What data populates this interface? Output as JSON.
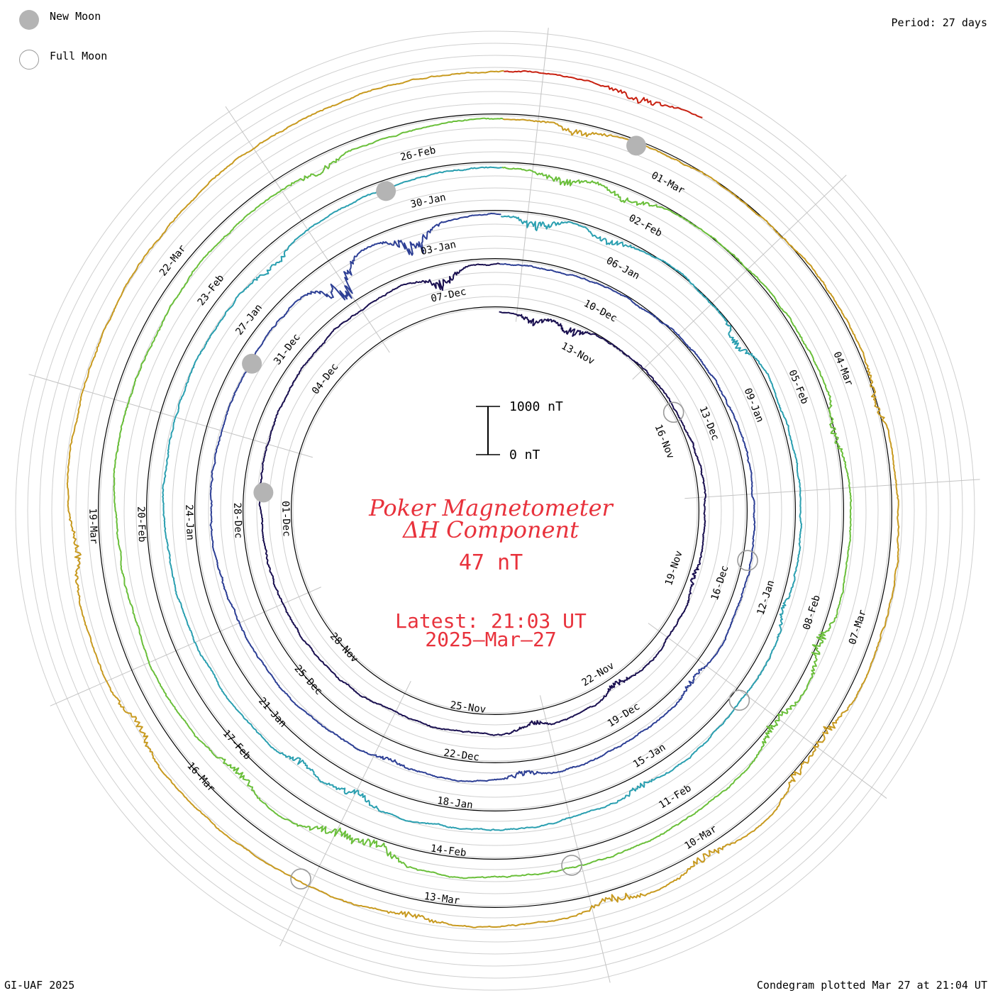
{
  "legend": {
    "new_moon_label": "New Moon",
    "full_moon_label": "Full Moon",
    "new_moon_color": "#b4b4b4",
    "full_moon_color": "#9a9a9a",
    "new_moon_icon": "filled-grey-circle-icon",
    "full_moon_icon": "hollow-grey-circle-icon"
  },
  "period_label": "Period: 27 days",
  "credit": "GI-UAF 2025",
  "plotted_label": "Condegram plotted Mar 27 at 21:04 UT",
  "center": {
    "title_line1": "Poker Magnetometer",
    "title_line2": "ΔH Component",
    "value": "47 nT",
    "latest_line1": "Latest: 21:03 UT",
    "latest_line2": "2025–Mar–27",
    "text_color": "#e8323c",
    "scale_top_label": "1000 nT",
    "scale_bottom_label": "0 nT"
  },
  "chart_data": {
    "type": "line",
    "title": "Poker Magnetometer ΔH Component",
    "period_days": 27,
    "scale_bar_nT": [
      0,
      1000
    ],
    "latest_value_nT": 47,
    "latest_time": "2025-Mar-27 21:03 UT",
    "series": [
      {
        "cycle": 1,
        "start": "2024-11-11",
        "end": "2024-12-07",
        "color": "#1a1050",
        "date_labels": [
          "13-Nov",
          "16-Nov",
          "19-Nov",
          "22-Nov",
          "25-Nov",
          "28-Nov",
          "01-Dec",
          "04-Dec",
          "07-Dec"
        ],
        "activity": [
          {
            "t": 0.03,
            "amp": 160
          },
          {
            "t": 0.06,
            "amp": 180
          },
          {
            "t": 0.3,
            "amp": 90
          },
          {
            "t": 0.4,
            "amp": 120
          },
          {
            "t": 0.47,
            "amp": 100
          },
          {
            "t": 0.96,
            "amp": 260
          }
        ]
      },
      {
        "cycle": 2,
        "start": "2024-12-08",
        "end": "2025-01-03",
        "color": "#2d3f95",
        "date_labels": [
          "10-Dec",
          "13-Dec",
          "16-Dec",
          "19-Dec",
          "22-Dec",
          "25-Dec",
          "28-Dec",
          "31-Dec",
          "03-Jan"
        ],
        "activity": [
          {
            "t": 0.36,
            "amp": 90
          },
          {
            "t": 0.48,
            "amp": 110
          },
          {
            "t": 0.56,
            "amp": 80
          },
          {
            "t": 0.9,
            "amp": 500
          },
          {
            "t": 0.95,
            "amp": 420
          }
        ]
      },
      {
        "cycle": 3,
        "start": "2025-01-04",
        "end": "2025-01-30",
        "color": "#2a9fb0",
        "date_labels": [
          "06-Jan",
          "09-Jan",
          "12-Jan",
          "15-Jan",
          "18-Jan",
          "21-Jan",
          "24-Jan",
          "27-Jan",
          "30-Jan"
        ],
        "activity": [
          {
            "t": 0.02,
            "amp": 200
          },
          {
            "t": 0.06,
            "amp": 150
          },
          {
            "t": 0.15,
            "amp": 180
          },
          {
            "t": 0.3,
            "amp": 80
          },
          {
            "t": 0.42,
            "amp": 110
          },
          {
            "t": 0.57,
            "amp": 160
          },
          {
            "t": 0.6,
            "amp": 140
          },
          {
            "t": 0.88,
            "amp": 120
          }
        ]
      },
      {
        "cycle": 4,
        "start": "2025-01-31",
        "end": "2025-02-26",
        "color": "#6abf3a",
        "date_labels": [
          "02-Feb",
          "05-Feb",
          "08-Feb",
          "11-Feb",
          "14-Feb",
          "17-Feb",
          "20-Feb",
          "23-Feb",
          "26-Feb"
        ],
        "activity": [
          {
            "t": 0.03,
            "amp": 160
          },
          {
            "t": 0.06,
            "amp": 180
          },
          {
            "t": 0.21,
            "amp": 160
          },
          {
            "t": 0.31,
            "amp": 200
          },
          {
            "t": 0.35,
            "amp": 190
          },
          {
            "t": 0.55,
            "amp": 240
          },
          {
            "t": 0.57,
            "amp": 260
          },
          {
            "t": 0.62,
            "amp": 140
          },
          {
            "t": 0.92,
            "amp": 120
          }
        ]
      },
      {
        "cycle": 5,
        "start": "2025-02-27",
        "end": "2025-03-25",
        "color": "#c89a20",
        "date_labels": [
          "01-Mar",
          "04-Mar",
          "07-Mar",
          "10-Mar",
          "13-Mar",
          "16-Mar",
          "19-Mar",
          "22-Mar"
        ],
        "activity": [
          {
            "t": 0.03,
            "amp": 140
          },
          {
            "t": 0.2,
            "amp": 120
          },
          {
            "t": 0.34,
            "amp": 200
          },
          {
            "t": 0.36,
            "amp": 180
          },
          {
            "t": 0.41,
            "amp": 150
          },
          {
            "t": 0.45,
            "amp": 170
          },
          {
            "t": 0.53,
            "amp": 120
          },
          {
            "t": 0.66,
            "amp": 160
          },
          {
            "t": 0.73,
            "amp": 130
          }
        ]
      },
      {
        "cycle": 6,
        "start": "2025-03-26",
        "end": "2025-03-27",
        "color": "#c82010",
        "date_labels": [],
        "activity": [
          {
            "t": 0.05,
            "amp": 150
          }
        ]
      }
    ],
    "new_moons": [
      "2024-12-01",
      "2024-12-30",
      "2025-01-29",
      "2025-02-28"
    ],
    "full_moons": [
      "2024-11-15",
      "2024-12-15",
      "2025-01-13",
      "2025-02-12",
      "2025-03-14"
    ]
  }
}
